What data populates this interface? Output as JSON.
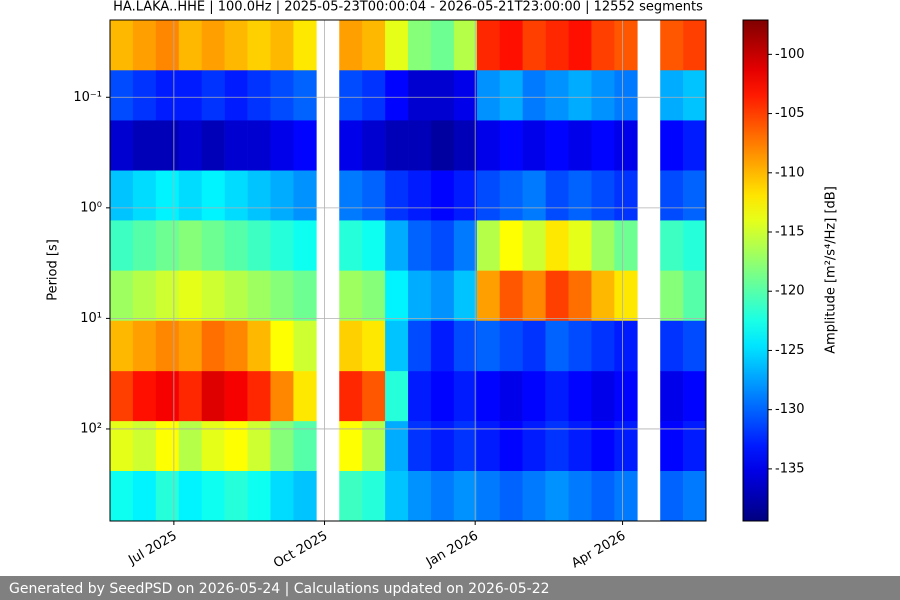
{
  "chart_data": {
    "type": "heatmap",
    "title": "HA.LAKA..HHE | 100.0Hz | 2025-05-23T00:00:04 - 2026-05-21T23:00:00 | 12552 segments",
    "ylabel": "Period [s]",
    "colorbar_label": "Amplitude [m²/s⁴/Hz] [dB]",
    "footer": "Generated by SeedPSD on 2026-05-24 | Calculations updated on 2026-05-22",
    "colormap": "jet",
    "ylog": true,
    "yinverted": true,
    "grid": true,
    "xlim": [
      "2025-05-23T00:00:04",
      "2026-05-21T23:00:00"
    ],
    "xticks": [
      {
        "value": "2025-07-01",
        "label": "Jul 2025"
      },
      {
        "value": "2025-10-01",
        "label": "Oct 2025"
      },
      {
        "value": "2026-01-01",
        "label": "Jan 2026"
      },
      {
        "value": "2026-04-01",
        "label": "Apr 2026"
      }
    ],
    "ylim": [
      0.02,
      680
    ],
    "yticks": [
      {
        "value": 0.1,
        "label": "10⁻¹"
      },
      {
        "value": 1,
        "label": "10⁰"
      },
      {
        "value": 10,
        "label": "10¹"
      },
      {
        "value": 100,
        "label": "10²"
      }
    ],
    "clim": [
      -139.4,
      -97.1
    ],
    "cticks": [
      -100,
      -105,
      -110,
      -115,
      -120,
      -125,
      -130,
      -135
    ],
    "xedges": [
      "2025-05-23",
      "2025-06-06",
      "2025-06-20",
      "2025-07-04",
      "2025-07-18",
      "2025-08-01",
      "2025-08-15",
      "2025-08-29",
      "2025-09-12",
      "2025-09-26",
      "2025-10-10",
      "2025-10-24",
      "2025-11-07",
      "2025-11-21",
      "2025-12-05",
      "2025-12-19",
      "2026-01-02",
      "2026-01-16",
      "2026-01-30",
      "2026-02-13",
      "2026-02-27",
      "2026-03-13",
      "2026-03-27",
      "2026-04-10",
      "2026-04-24",
      "2026-05-08",
      "2026-05-21T23:00:00"
    ],
    "yedges": [
      0.02,
      0.057,
      0.162,
      0.46,
      1.3,
      3.7,
      10.5,
      30,
      85,
      240,
      680
    ],
    "values": [
      [
        -110,
        -109,
        -108,
        -110,
        -109,
        -110,
        -111,
        -110,
        -112,
        null,
        -109,
        -110,
        -114,
        -118,
        -119,
        -116,
        -104,
        -103,
        -105,
        -104,
        -103,
        -105,
        -106,
        null,
        -106,
        -105
      ],
      [
        -131,
        -132,
        -133,
        -133,
        -132,
        -133,
        -132,
        -131,
        -130,
        null,
        -131,
        -132,
        -134,
        -136,
        -136,
        -135,
        -128,
        -127,
        -129,
        -128,
        -127,
        -128,
        -129,
        null,
        -127,
        -126
      ],
      [
        -136,
        -137,
        -137,
        -136,
        -137,
        -136,
        -136,
        -135,
        -134,
        null,
        -135,
        -136,
        -137,
        -137,
        -138,
        -137,
        -135,
        -134,
        -135,
        -134,
        -135,
        -134,
        -135,
        null,
        -134,
        -133
      ],
      [
        -126,
        -125,
        -124,
        -125,
        -124,
        -125,
        -126,
        -127,
        -128,
        null,
        -129,
        -130,
        -132,
        -133,
        -134,
        -133,
        -131,
        -130,
        -129,
        -131,
        -130,
        -131,
        -132,
        null,
        -131,
        -130
      ],
      [
        -121,
        -120,
        -119,
        -118,
        -119,
        -120,
        -121,
        -122,
        -123,
        null,
        -122,
        -123,
        -127,
        -130,
        -131,
        -129,
        -116,
        -113,
        -115,
        -112,
        -114,
        -117,
        -119,
        null,
        -121,
        -122
      ],
      [
        -117,
        -116,
        -115,
        -114,
        -115,
        -116,
        -117,
        -118,
        -119,
        null,
        -117,
        -118,
        -124,
        -127,
        -128,
        -126,
        -109,
        -106,
        -108,
        -105,
        -107,
        -110,
        -112,
        null,
        -118,
        -120
      ],
      [
        -110,
        -109,
        -108,
        -109,
        -107,
        -108,
        -110,
        -113,
        -115,
        null,
        -111,
        -112,
        -126,
        -131,
        -133,
        -131,
        -130,
        -131,
        -132,
        -130,
        -131,
        -132,
        -133,
        null,
        -132,
        -131
      ],
      [
        -105,
        -103,
        -102,
        -104,
        -101,
        -102,
        -104,
        -108,
        -112,
        null,
        -104,
        -106,
        -122,
        -133,
        -134,
        -133,
        -134,
        -135,
        -134,
        -133,
        -134,
        -135,
        -134,
        null,
        -135,
        -134
      ],
      [
        -114,
        -115,
        -113,
        -116,
        -114,
        -113,
        -115,
        -118,
        -120,
        null,
        -113,
        -116,
        -127,
        -132,
        -133,
        -132,
        -133,
        -134,
        -133,
        -132,
        -133,
        -134,
        -133,
        null,
        -134,
        -133
      ],
      [
        -123,
        -124,
        -122,
        -124,
        -123,
        -122,
        -123,
        -125,
        -126,
        null,
        -121,
        -122,
        -126,
        -128,
        -129,
        -128,
        -129,
        -130,
        -129,
        -128,
        -129,
        -130,
        -129,
        null,
        -130,
        -129
      ]
    ]
  }
}
